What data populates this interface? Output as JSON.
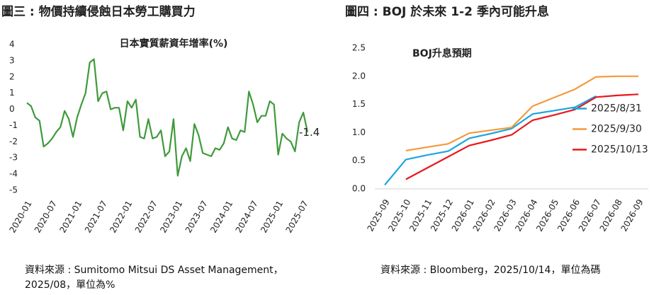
{
  "chart_data": [
    {
      "type": "line",
      "heading": "圖三 : 物價持續侵蝕日本勞工購買力",
      "title": "日本實質薪資年增率(%)",
      "source": "資料來源 : Sumitomo Mitsui DS Asset Management，2025/08，單位為%",
      "categories": [
        "2020-01",
        null,
        null,
        null,
        null,
        null,
        "2020-07",
        null,
        null,
        null,
        null,
        null,
        "2021-01",
        null,
        null,
        null,
        null,
        null,
        "2021-07",
        null,
        null,
        null,
        null,
        null,
        "2022-01",
        null,
        null,
        null,
        null,
        null,
        "2022-07",
        null,
        null,
        null,
        null,
        null,
        "2023-01",
        null,
        null,
        null,
        null,
        null,
        "2023-07",
        null,
        null,
        null,
        null,
        null,
        "2024-01",
        null,
        null,
        null,
        null,
        null,
        "2024-07",
        null,
        null,
        null,
        null,
        null,
        "2025-01",
        null,
        null,
        null,
        null,
        null,
        "2025-07",
        null
      ],
      "values": [
        0.4,
        0.2,
        -0.5,
        -0.7,
        -2.3,
        -2.1,
        -1.8,
        -1.4,
        -1.1,
        -0.1,
        -0.6,
        -1.7,
        -0.5,
        0.3,
        1.0,
        2.9,
        3.1,
        0.5,
        1.0,
        1.1,
        0.0,
        0.1,
        0.1,
        -1.3,
        0.5,
        0.1,
        0.6,
        -1.7,
        -1.8,
        -0.6,
        -1.8,
        -1.7,
        -1.3,
        -2.9,
        -2.6,
        -0.6,
        -4.1,
        -2.9,
        -2.4,
        -3.2,
        -0.9,
        -1.6,
        -2.7,
        -2.8,
        -2.9,
        -2.4,
        -2.5,
        -2.1,
        -1.1,
        -1.8,
        -1.9,
        -1.3,
        -1.4,
        1.1,
        0.3,
        -0.8,
        -0.4,
        -0.4,
        0.5,
        0.3,
        -2.8,
        -1.5,
        -1.8,
        -2.0,
        -2.6,
        -0.8,
        -0.2,
        -1.4
      ],
      "color": "#3f9a3a",
      "label_last_point": true,
      "ylim": [
        -5,
        4
      ],
      "yticks": [
        4,
        3,
        2,
        1,
        0,
        -1,
        -2,
        -3,
        -4,
        -5
      ],
      "grid": false
    },
    {
      "type": "line",
      "heading": "圖四 : BOJ 於未來 1-2 季內可能升息",
      "title": "BOJ升息預期",
      "source": "資料來源 : Bloomberg，2025/10/14，單位為碼",
      "categories": [
        "2025-09",
        "2025-10",
        "2025-11",
        "2025-12",
        "2026-01",
        "2026-02",
        "2026-03",
        "2026-04",
        "2026-05",
        "2026-06",
        "2026-07",
        "2026-08",
        "2026-09"
      ],
      "series": [
        {
          "name": "2025/8/31",
          "color": "#1ba6e0",
          "values": [
            0.07,
            0.52,
            0.6,
            0.67,
            0.9,
            0.98,
            1.07,
            1.33,
            1.39,
            1.45,
            1.65,
            null,
            null
          ]
        },
        {
          "name": "2025/9/30",
          "color": "#f5993a",
          "values": [
            null,
            0.68,
            0.74,
            0.8,
            0.99,
            1.04,
            1.09,
            1.47,
            1.62,
            1.77,
            1.99,
            2.0,
            2.0
          ]
        },
        {
          "name": "2025/10/13",
          "color": "#e8181c",
          "values": [
            null,
            0.17,
            0.37,
            0.57,
            0.77,
            0.86,
            0.96,
            1.22,
            1.31,
            1.41,
            1.63,
            1.66,
            1.68
          ]
        }
      ],
      "legend": "center right",
      "ylim": [
        0,
        2.5
      ],
      "yticks": [
        {
          "value": 0,
          "label": "0.0"
        },
        0.5,
        {
          "value": 1,
          "label": "1.0"
        },
        1.5,
        {
          "value": 2,
          "label": "2.0"
        },
        2.5
      ],
      "grid": false
    }
  ]
}
